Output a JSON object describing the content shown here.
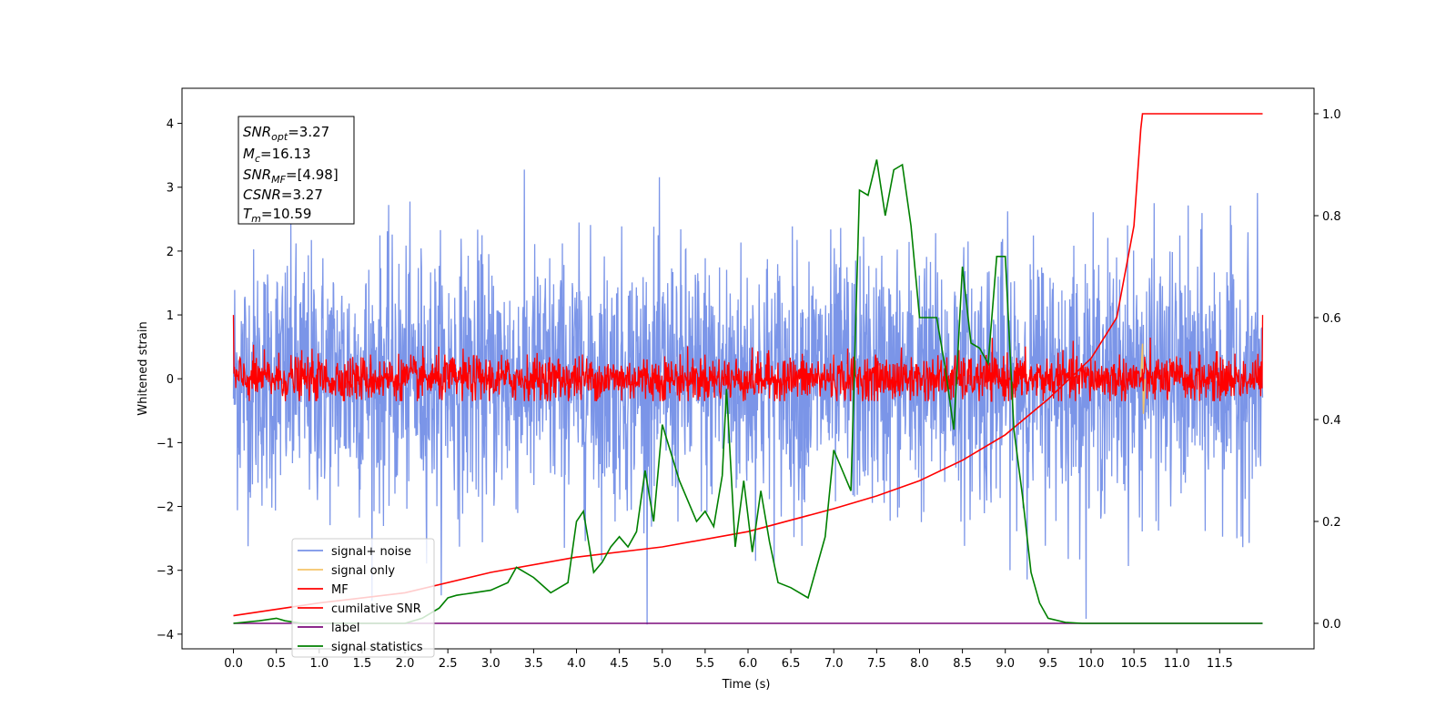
{
  "chart_data": {
    "type": "line",
    "xlabel": "Time (s)",
    "ylabel": "Whitened strain",
    "xlim": [
      -0.6,
      12.6
    ],
    "ylim_left": [
      -4.23,
      4.55
    ],
    "ylim_right": [
      -0.05,
      1.05
    ],
    "x_ticks": [
      "0.0",
      "0.5",
      "1.0",
      "1.5",
      "2.0",
      "2.5",
      "3.0",
      "3.5",
      "4.0",
      "4.5",
      "5.0",
      "5.5",
      "6.0",
      "6.5",
      "7.0",
      "7.5",
      "8.0",
      "8.5",
      "9.0",
      "9.5",
      "10.0",
      "10.5",
      "11.0",
      "11.5"
    ],
    "y_ticks_left": [
      "−4",
      "−3",
      "−2",
      "−1",
      "0",
      "1",
      "2",
      "3",
      "4"
    ],
    "y_ticks_right": [
      "0.0",
      "0.2",
      "0.4",
      "0.6",
      "0.8",
      "1.0"
    ],
    "stats_box": [
      {
        "main": "SNR",
        "sub": "opt",
        "value": "=3.27"
      },
      {
        "main": "M",
        "sub": "c",
        "value": "=16.13"
      },
      {
        "main": "SNR",
        "sub": "MF",
        "value": "=[4.98]"
      },
      {
        "main": "CSNR",
        "sub": "",
        "value": "=3.27"
      },
      {
        "main": "T",
        "sub": "m",
        "value": "=10.59"
      }
    ],
    "series": [
      {
        "name": "signal+ noise",
        "color": "#7893e8",
        "axis": "left",
        "x_range": [
          0.0,
          12.0
        ],
        "amplitude_sigma": 1.0,
        "min": -3.85,
        "max": 4.05
      },
      {
        "name": "signal only",
        "color": "#f4c56a",
        "axis": "left",
        "note_points": [
          [
            10.58,
            0.0
          ],
          [
            10.6,
            0.55
          ],
          [
            10.61,
            -0.55
          ],
          [
            10.63,
            0.0
          ]
        ]
      },
      {
        "name": "MF",
        "color": "#ff0000",
        "axis": "left",
        "x_range": [
          0.0,
          12.0
        ],
        "amplitude_sigma": 0.18,
        "min": -0.35,
        "max": 1.0
      },
      {
        "name": "cumilative SNR",
        "color": "#ff0000",
        "axis": "right",
        "x": [
          0.0,
          1.0,
          2.0,
          3.0,
          4.0,
          5.0,
          6.0,
          7.0,
          7.5,
          8.0,
          8.5,
          9.0,
          9.5,
          10.0,
          10.3,
          10.5,
          10.58,
          10.6,
          12.0
        ],
        "y": [
          0.015,
          0.04,
          0.06,
          0.1,
          0.13,
          0.15,
          0.18,
          0.225,
          0.25,
          0.28,
          0.32,
          0.37,
          0.44,
          0.52,
          0.6,
          0.78,
          0.97,
          1.0,
          1.0
        ]
      },
      {
        "name": "label",
        "color": "#7b0c7b",
        "axis": "right",
        "x": [
          0.0,
          12.0
        ],
        "y": [
          0.0,
          0.0
        ]
      },
      {
        "name": "signal statistics",
        "color": "#008000",
        "axis": "right",
        "x": [
          0.0,
          0.3,
          0.5,
          0.6,
          0.8,
          1.0,
          1.2,
          1.5,
          1.8,
          2.0,
          2.2,
          2.4,
          2.5,
          2.6,
          2.8,
          3.0,
          3.2,
          3.3,
          3.5,
          3.7,
          3.9,
          4.0,
          4.08,
          4.2,
          4.3,
          4.4,
          4.5,
          4.6,
          4.7,
          4.8,
          4.9,
          5.0,
          5.2,
          5.4,
          5.5,
          5.6,
          5.7,
          5.75,
          5.85,
          5.95,
          6.05,
          6.15,
          6.25,
          6.35,
          6.5,
          6.7,
          6.9,
          7.0,
          7.1,
          7.2,
          7.3,
          7.4,
          7.5,
          7.6,
          7.7,
          7.8,
          7.9,
          8.0,
          8.2,
          8.3,
          8.4,
          8.5,
          8.6,
          8.7,
          8.8,
          8.9,
          9.0,
          9.1,
          9.2,
          9.3,
          9.4,
          9.5,
          9.7,
          9.9,
          10.5,
          11.5,
          12.0
        ],
        "y": [
          0.0,
          0.005,
          0.01,
          0.005,
          0.0,
          0.0,
          0.0,
          0.0,
          0.0,
          0.0,
          0.01,
          0.03,
          0.05,
          0.055,
          0.06,
          0.065,
          0.08,
          0.11,
          0.09,
          0.06,
          0.08,
          0.2,
          0.22,
          0.1,
          0.12,
          0.15,
          0.17,
          0.15,
          0.18,
          0.3,
          0.2,
          0.39,
          0.28,
          0.2,
          0.22,
          0.19,
          0.29,
          0.46,
          0.15,
          0.28,
          0.14,
          0.26,
          0.16,
          0.08,
          0.07,
          0.05,
          0.17,
          0.34,
          0.3,
          0.26,
          0.85,
          0.84,
          0.91,
          0.8,
          0.89,
          0.9,
          0.78,
          0.6,
          0.6,
          0.5,
          0.38,
          0.7,
          0.55,
          0.54,
          0.51,
          0.72,
          0.72,
          0.38,
          0.25,
          0.1,
          0.04,
          0.01,
          0.002,
          0.0,
          0.0,
          0.0,
          0.0
        ]
      }
    ],
    "legend_position": "lower-left",
    "grid": false
  }
}
